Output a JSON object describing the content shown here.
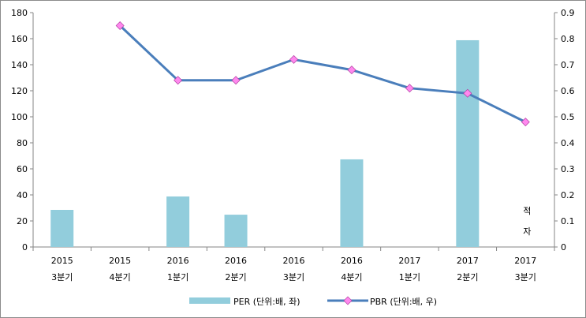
{
  "chart_data": {
    "type": "bar+line",
    "categories": [
      [
        "2015",
        "3분기"
      ],
      [
        "2015",
        "4분기"
      ],
      [
        "2016",
        "1분기"
      ],
      [
        "2016",
        "2분기"
      ],
      [
        "2016",
        "3분기"
      ],
      [
        "2016",
        "4분기"
      ],
      [
        "2017",
        "1분기"
      ],
      [
        "2017",
        "2분기"
      ],
      [
        "2017",
        "3분기"
      ]
    ],
    "series": [
      {
        "name": "PER (단위:배, 좌)",
        "type": "bar",
        "axis": "left",
        "color": "#92cddc",
        "values": [
          28.5,
          null,
          38.8,
          24.8,
          null,
          67.3,
          null,
          158.8,
          null
        ]
      },
      {
        "name": "PBR (단위:배, 우)",
        "type": "line",
        "axis": "right",
        "color": "#4a7ebb",
        "marker_color": "#ff88ee",
        "values": [
          null,
          0.85,
          0.64,
          0.64,
          0.72,
          0.68,
          0.61,
          0.59,
          0.48
        ]
      }
    ],
    "left_axis": {
      "min": 0,
      "max": 180,
      "step": 20,
      "ticks": [
        "0",
        "20",
        "40",
        "60",
        "80",
        "100",
        "120",
        "140",
        "160",
        "180"
      ]
    },
    "right_axis": {
      "min": 0,
      "max": 0.9,
      "step": 0.1,
      "ticks": [
        "0",
        "0.1",
        "0.2",
        "0.3",
        "0.4",
        "0.5",
        "0.6",
        "0.7",
        "0.8",
        "0.9"
      ]
    },
    "annotation": {
      "category_index": 8,
      "lines": [
        "적",
        "자"
      ]
    },
    "legend": "bottom",
    "grid": false
  }
}
